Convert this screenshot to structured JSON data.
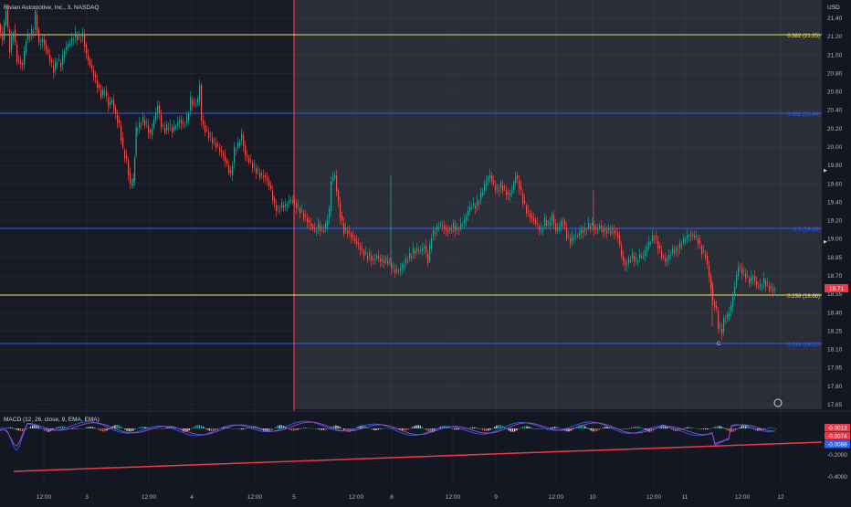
{
  "chart_data": {
    "type": "candlestick",
    "symbol_title": "Rivian Automotive, Inc., 3, NASDAQ",
    "currency": "USD",
    "y_ticks": [
      "21.40",
      "21.20",
      "21.00",
      "20.80",
      "20.60",
      "20.40",
      "20.20",
      "20.00",
      "19.80",
      "19.60",
      "19.40",
      "19.20",
      "19.00",
      "18.85",
      "18.70",
      "18.55",
      "18.40",
      "18.25",
      "18.10",
      "17.95",
      "17.80",
      "17.65"
    ],
    "x_ticks": [
      "12:00",
      "3",
      "12:00",
      "4",
      "12:00",
      "5",
      "12:00",
      "8",
      "12:00",
      "9",
      "12:00",
      "10",
      "12:00",
      "11",
      "12:00",
      "12"
    ],
    "last_price": "18.71",
    "fib_levels": [
      {
        "label": "0.382 (21.25)",
        "value": 21.25,
        "color": "#e7e05a"
      },
      {
        "label": "0.382 (20.44)",
        "value": 20.44,
        "color": "#2962ff"
      },
      {
        "label": "0.5 (19.29)",
        "value": 19.29,
        "color": "#2962ff"
      },
      {
        "label": "0.236 (18.66)",
        "value": 18.66,
        "color": "#e7e05a"
      },
      {
        "label": "0.618 (18.22)",
        "value": 18.22,
        "color": "#2962ff"
      }
    ],
    "marker_label": "C",
    "price_path": [
      [
        0,
        21.35
      ],
      [
        4,
        21.2
      ],
      [
        8,
        21.5
      ],
      [
        12,
        21.1
      ],
      [
        16,
        21.3
      ],
      [
        20,
        21.0
      ],
      [
        26,
        20.95
      ],
      [
        30,
        21.2
      ],
      [
        34,
        21.25
      ],
      [
        38,
        21.3
      ],
      [
        40,
        21.45
      ],
      [
        44,
        21.15
      ],
      [
        48,
        21.2
      ],
      [
        52,
        21.1
      ],
      [
        56,
        21.0
      ],
      [
        60,
        20.9
      ],
      [
        64,
        21.0
      ],
      [
        68,
        20.95
      ],
      [
        72,
        21.1
      ],
      [
        76,
        21.15
      ],
      [
        80,
        21.2
      ],
      [
        84,
        21.25
      ],
      [
        88,
        21.2
      ],
      [
        92,
        21.25
      ],
      [
        96,
        21.05
      ],
      [
        100,
        20.95
      ],
      [
        104,
        20.85
      ],
      [
        108,
        20.75
      ],
      [
        112,
        20.65
      ],
      [
        116,
        20.7
      ],
      [
        120,
        20.55
      ],
      [
        124,
        20.6
      ],
      [
        128,
        20.45
      ],
      [
        132,
        20.35
      ],
      [
        136,
        20.1
      ],
      [
        140,
        20.0
      ],
      [
        144,
        19.75
      ],
      [
        147,
        19.8
      ],
      [
        150,
        20.3
      ],
      [
        154,
        20.35
      ],
      [
        158,
        20.4
      ],
      [
        162,
        20.35
      ],
      [
        166,
        20.25
      ],
      [
        170,
        20.4
      ],
      [
        174,
        20.55
      ],
      [
        178,
        20.35
      ],
      [
        182,
        20.3
      ],
      [
        186,
        20.35
      ],
      [
        190,
        20.3
      ],
      [
        194,
        20.35
      ],
      [
        198,
        20.4
      ],
      [
        202,
        20.35
      ],
      [
        206,
        20.4
      ],
      [
        210,
        20.6
      ],
      [
        214,
        20.55
      ],
      [
        218,
        20.6
      ],
      [
        220,
        20.75
      ],
      [
        222,
        20.4
      ],
      [
        226,
        20.3
      ],
      [
        230,
        20.25
      ],
      [
        234,
        20.2
      ],
      [
        238,
        20.15
      ],
      [
        242,
        20.1
      ],
      [
        246,
        20.05
      ],
      [
        250,
        19.95
      ],
      [
        254,
        19.85
      ],
      [
        258,
        20.1
      ],
      [
        262,
        20.15
      ],
      [
        266,
        20.25
      ],
      [
        270,
        20.05
      ],
      [
        274,
        20.0
      ],
      [
        278,
        19.95
      ],
      [
        282,
        19.9
      ],
      [
        286,
        19.85
      ],
      [
        290,
        19.85
      ],
      [
        294,
        19.8
      ],
      [
        298,
        19.7
      ],
      [
        302,
        19.55
      ],
      [
        306,
        19.5
      ],
      [
        310,
        19.55
      ],
      [
        314,
        19.55
      ],
      [
        318,
        19.6
      ],
      [
        322,
        19.6
      ],
      [
        326,
        19.55
      ],
      [
        330,
        19.5
      ],
      [
        334,
        19.45
      ],
      [
        338,
        19.4
      ],
      [
        342,
        19.35
      ],
      [
        346,
        19.3
      ],
      [
        350,
        19.35
      ],
      [
        354,
        19.3
      ],
      [
        358,
        19.35
      ],
      [
        362,
        19.5
      ],
      [
        364,
        19.8
      ],
      [
        368,
        19.85
      ],
      [
        370,
        19.7
      ],
      [
        374,
        19.45
      ],
      [
        378,
        19.3
      ],
      [
        382,
        19.3
      ],
      [
        386,
        19.25
      ],
      [
        390,
        19.2
      ],
      [
        394,
        19.15
      ],
      [
        398,
        19.1
      ],
      [
        402,
        19.05
      ],
      [
        406,
        19.05
      ],
      [
        410,
        19.0
      ],
      [
        414,
        19.05
      ],
      [
        418,
        19.0
      ],
      [
        422,
        19.0
      ],
      [
        426,
        19.0
      ],
      [
        430,
        18.95
      ],
      [
        434,
        18.9
      ],
      [
        438,
        18.9
      ],
      [
        442,
        18.95
      ],
      [
        446,
        19.0
      ],
      [
        450,
        19.05
      ],
      [
        454,
        19.1
      ],
      [
        458,
        19.1
      ],
      [
        462,
        19.1
      ],
      [
        466,
        19.15
      ],
      [
        470,
        19.0
      ],
      [
        474,
        19.25
      ],
      [
        478,
        19.3
      ],
      [
        482,
        19.35
      ],
      [
        486,
        19.35
      ],
      [
        490,
        19.3
      ],
      [
        494,
        19.3
      ],
      [
        498,
        19.35
      ],
      [
        502,
        19.3
      ],
      [
        506,
        19.35
      ],
      [
        510,
        19.4
      ],
      [
        514,
        19.5
      ],
      [
        518,
        19.55
      ],
      [
        522,
        19.55
      ],
      [
        526,
        19.6
      ],
      [
        530,
        19.7
      ],
      [
        534,
        19.8
      ],
      [
        538,
        19.85
      ],
      [
        542,
        19.75
      ],
      [
        546,
        19.7
      ],
      [
        550,
        19.75
      ],
      [
        554,
        19.7
      ],
      [
        558,
        19.65
      ],
      [
        562,
        19.7
      ],
      [
        566,
        19.85
      ],
      [
        570,
        19.75
      ],
      [
        574,
        19.6
      ],
      [
        578,
        19.5
      ],
      [
        582,
        19.45
      ],
      [
        586,
        19.4
      ],
      [
        590,
        19.35
      ],
      [
        594,
        19.3
      ],
      [
        598,
        19.4
      ],
      [
        602,
        19.35
      ],
      [
        606,
        19.45
      ],
      [
        610,
        19.3
      ],
      [
        614,
        19.35
      ],
      [
        618,
        19.4
      ],
      [
        622,
        19.25
      ],
      [
        626,
        19.2
      ],
      [
        630,
        19.25
      ],
      [
        634,
        19.25
      ],
      [
        638,
        19.3
      ],
      [
        642,
        19.3
      ],
      [
        646,
        19.35
      ],
      [
        650,
        19.35
      ],
      [
        654,
        19.3
      ],
      [
        658,
        19.35
      ],
      [
        662,
        19.3
      ],
      [
        666,
        19.3
      ],
      [
        670,
        19.3
      ],
      [
        674,
        19.3
      ],
      [
        678,
        19.25
      ],
      [
        682,
        19.05
      ],
      [
        686,
        18.95
      ],
      [
        690,
        19.0
      ],
      [
        694,
        19.05
      ],
      [
        698,
        19.0
      ],
      [
        702,
        19.05
      ],
      [
        706,
        19.05
      ],
      [
        710,
        19.15
      ],
      [
        714,
        19.2
      ],
      [
        718,
        19.25
      ],
      [
        722,
        19.15
      ],
      [
        726,
        19.05
      ],
      [
        730,
        19.0
      ],
      [
        734,
        19.05
      ],
      [
        738,
        19.1
      ],
      [
        742,
        19.1
      ],
      [
        746,
        19.15
      ],
      [
        750,
        19.2
      ],
      [
        754,
        19.25
      ],
      [
        758,
        19.25
      ],
      [
        762,
        19.25
      ],
      [
        766,
        19.2
      ],
      [
        770,
        19.1
      ],
      [
        774,
        19.05
      ],
      [
        778,
        18.85
      ],
      [
        782,
        18.6
      ],
      [
        786,
        18.5
      ],
      [
        788,
        18.35
      ],
      [
        792,
        18.3
      ],
      [
        794,
        18.4
      ],
      [
        798,
        18.45
      ],
      [
        802,
        18.55
      ],
      [
        806,
        18.75
      ],
      [
        810,
        18.95
      ],
      [
        814,
        18.9
      ],
      [
        818,
        18.85
      ],
      [
        822,
        18.8
      ],
      [
        826,
        18.85
      ],
      [
        830,
        18.75
      ],
      [
        834,
        18.75
      ],
      [
        838,
        18.8
      ],
      [
        842,
        18.75
      ],
      [
        846,
        18.72
      ],
      [
        850,
        18.71
      ]
    ],
    "macd_label": "MACD (12, 26, close, 9, EMA, EMA)",
    "macd_ticks": [
      "-0.2000",
      "-0.4000"
    ],
    "macd_badges": [
      {
        "text": "-0.0013",
        "color": "#f23645"
      },
      {
        "text": "-0.0074",
        "color": "#f23645"
      },
      {
        "text": "-0.0088",
        "color": "#2962ff"
      }
    ],
    "grid": true,
    "legend": "none"
  }
}
